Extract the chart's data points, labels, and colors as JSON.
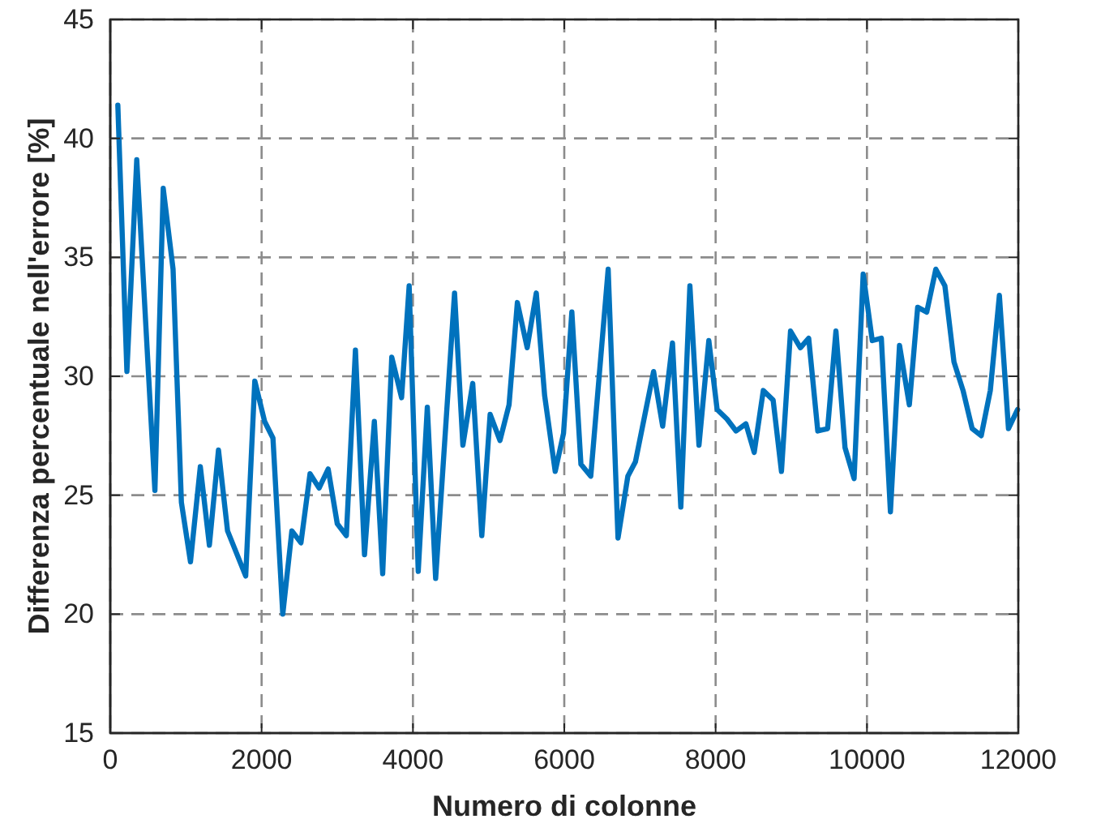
{
  "chart_data": {
    "type": "line",
    "xlabel": "Numero di colonne",
    "ylabel": "Differenza percentuale nell'errore [%]",
    "x": [
      100,
      220,
      350,
      590,
      700,
      830,
      940,
      1060,
      1190,
      1310,
      1430,
      1550,
      1790,
      1910,
      2040,
      2150,
      2280,
      2400,
      2520,
      2640,
      2760,
      2880,
      3000,
      3120,
      3240,
      3360,
      3490,
      3600,
      3720,
      3850,
      3950,
      4070,
      4190,
      4300,
      4550,
      4660,
      4790,
      4910,
      5020,
      5150,
      5270,
      5380,
      5510,
      5630,
      5740,
      5880,
      5990,
      6100,
      6220,
      6350,
      6580,
      6710,
      6840,
      6940,
      7180,
      7300,
      7430,
      7540,
      7660,
      7780,
      7910,
      8020,
      8150,
      8270,
      8400,
      8510,
      8630,
      8760,
      8870,
      8990,
      9120,
      9230,
      9350,
      9480,
      9590,
      9710,
      9830,
      9950,
      10070,
      10190,
      10310,
      10430,
      10560,
      10670,
      10790,
      10910,
      11030,
      11150,
      11270,
      11390,
      11510,
      11630,
      11750,
      11870,
      11990
    ],
    "series": [
      {
        "color": "#0072bd",
        "values": [
          41.4,
          30.2,
          39.1,
          25.2,
          37.9,
          34.5,
          24.7,
          22.2,
          26.2,
          22.9,
          26.9,
          23.5,
          21.6,
          29.8,
          28.1,
          27.4,
          20.0,
          23.5,
          23.0,
          25.9,
          25.3,
          26.1,
          23.8,
          23.3,
          31.1,
          22.5,
          28.1,
          21.7,
          30.8,
          29.1,
          33.8,
          21.8,
          28.7,
          21.5,
          33.5,
          27.1,
          29.7,
          23.3,
          28.4,
          27.3,
          28.8,
          33.1,
          31.2,
          33.5,
          29.2,
          26.0,
          27.6,
          32.7,
          26.3,
          25.8,
          34.5,
          23.2,
          25.8,
          26.4,
          30.2,
          27.9,
          31.4,
          24.5,
          33.8,
          27.1,
          31.5,
          28.6,
          28.2,
          27.7,
          28.0,
          26.8,
          29.4,
          29.0,
          26.0,
          31.9,
          31.2,
          31.6,
          27.7,
          27.8,
          31.9,
          27.0,
          25.7,
          34.3,
          31.5,
          31.6,
          24.3,
          31.3,
          28.8,
          32.9,
          32.7,
          34.5,
          33.8,
          30.6,
          29.4,
          27.8,
          27.5,
          29.4,
          33.4,
          27.8,
          28.6
        ]
      }
    ],
    "xlim": [
      0,
      12000
    ],
    "xticks": [
      0,
      2000,
      4000,
      6000,
      8000,
      10000,
      12000
    ],
    "ylim": [
      15,
      45
    ],
    "yticks": [
      15,
      20,
      25,
      30,
      35,
      40,
      45
    ],
    "grid": true,
    "marker": "none",
    "line_style": "solid"
  }
}
